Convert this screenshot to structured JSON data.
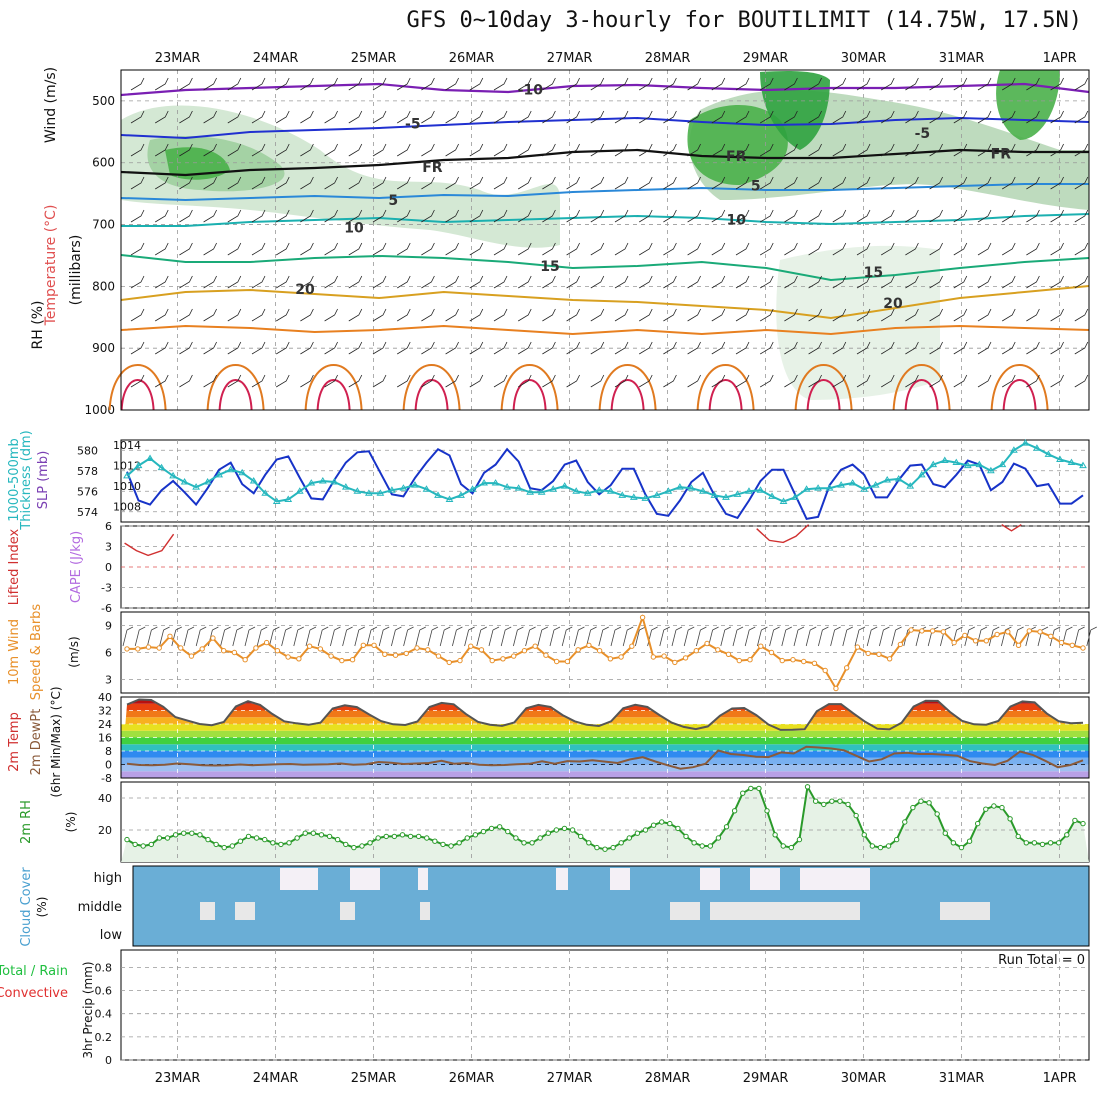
{
  "title": "GFS 0~10day 3-hourly for BOUTILIMIT (14.75W, 17.5N)",
  "colors": {
    "slp": "#1733c8",
    "thickness": "#26b7be",
    "lifted": "#d03030",
    "cape": "#b36be0",
    "wind": "#e8902a",
    "rh": "#2a9a2a",
    "cloud": "#6aaed6",
    "precip_total": "#1fbf3f",
    "precip_conv": "#e03030",
    "temp": "#555555",
    "dewpt": "#8a5a3a"
  },
  "chart_data": [
    {
      "type": "heatmap",
      "panel": "upper-air",
      "ylabel_parts": [
        "RH (%)",
        "Temperature (°C)",
        "Wind (m/s)",
        "(millibars)"
      ],
      "x_ticks": [
        "23MAR",
        "24MAR",
        "25MAR",
        "26MAR",
        "27MAR",
        "28MAR",
        "29MAR",
        "30MAR",
        "31MAR",
        "1APR"
      ],
      "y_ticks": [
        500,
        600,
        700,
        800,
        900,
        1000
      ],
      "ylim": [
        450,
        1000
      ],
      "isotherm_labels": [
        {
          "label": "-10",
          "day": 3.6,
          "p": 490
        },
        {
          "label": "-5",
          "day": 2.4,
          "p": 545
        },
        {
          "label": "-5",
          "day": 7.6,
          "p": 560
        },
        {
          "label": "FR",
          "day": 2.6,
          "p": 615
        },
        {
          "label": "FR",
          "day": 5.7,
          "p": 597
        },
        {
          "label": "FR",
          "day": 8.4,
          "p": 593
        },
        {
          "label": "5",
          "day": 2.2,
          "p": 668
        },
        {
          "label": "5",
          "day": 5.9,
          "p": 645
        },
        {
          "label": "10",
          "day": 1.8,
          "p": 713
        },
        {
          "label": "10",
          "day": 5.7,
          "p": 700
        },
        {
          "label": "15",
          "day": 3.8,
          "p": 775
        },
        {
          "label": "15",
          "day": 7.1,
          "p": 785
        },
        {
          "label": "20",
          "day": 1.3,
          "p": 812
        },
        {
          "label": "20",
          "day": 7.3,
          "p": 835
        }
      ]
    },
    {
      "type": "line",
      "panel": "slp-thickness",
      "ylabel_left": [
        "1000-500mb",
        "Thickness (dm)"
      ],
      "ylabel_right": "SLP (mb)",
      "y_ticks_thickness": [
        574,
        576,
        578,
        580
      ],
      "y_ticks_slp": [
        1008,
        1010,
        1012,
        1014
      ],
      "series": [
        {
          "name": "SLP (mb)",
          "values": [
            1011.4,
            1008.6,
            1008.2,
            1009.6,
            1010.5,
            1009.4,
            1008.2,
            1009.8,
            1011.6,
            1012.3,
            1010.2,
            1009.3,
            1011.1,
            1012.6,
            1012.9,
            1010.8,
            1008.8,
            1008.7,
            1010.6,
            1012.3,
            1013.3,
            1013.4,
            1011.3,
            1009.2,
            1009.0,
            1010.8,
            1012.3,
            1013.6,
            1013.0,
            1010.2,
            1009.3,
            1011.3,
            1012.1,
            1013.6,
            1012.4,
            1009.8,
            1009.6,
            1010.5,
            1012.1,
            1012.5,
            1010.4,
            1009.2,
            1010.1,
            1011.7,
            1011.7,
            1009.2,
            1007.3,
            1007.1,
            1008.6,
            1010.4,
            1011.3,
            1009.1,
            1007.3,
            1006.9,
            1008.6,
            1010.5,
            1011.6,
            1011.6,
            1009.2,
            1006.8,
            1007.0,
            1010.1,
            1011.6,
            1012.1,
            1011.1,
            1008.9,
            1008.9,
            1010.6,
            1012.0,
            1012.1,
            1010.2,
            1009.9,
            1011.1,
            1012.5,
            1012.1,
            1009.6,
            1010.4,
            1012.2,
            1011.7,
            1010.0,
            1010.2,
            1008.3,
            1008.3,
            1009.1
          ]
        },
        {
          "name": "1000-500mb Thickness (dm)",
          "values": [
            577.5,
            578.5,
            579.2,
            578.3,
            577.5,
            576.9,
            576.4,
            576.9,
            577.6,
            578.1,
            577.8,
            577.0,
            575.8,
            575.0,
            575.2,
            576.0,
            576.8,
            577.0,
            576.9,
            576.4,
            576.0,
            575.8,
            575.8,
            576.1,
            576.3,
            576.6,
            576.2,
            575.6,
            575.2,
            575.6,
            576.2,
            576.8,
            576.8,
            576.4,
            576.3,
            575.9,
            575.9,
            576.2,
            576.5,
            576.0,
            575.8,
            576.1,
            576.0,
            575.6,
            575.4,
            575.3,
            575.6,
            576.0,
            576.4,
            576.3,
            576.0,
            575.6,
            575.4,
            575.7,
            576.0,
            576.1,
            575.5,
            575.0,
            575.4,
            576.2,
            576.3,
            576.3,
            576.6,
            576.8,
            576.2,
            576.6,
            577.1,
            577.2,
            576.5,
            577.6,
            578.6,
            579.0,
            578.8,
            578.5,
            578.6,
            578.0,
            578.6,
            580.0,
            580.7,
            580.2,
            579.6,
            579.1,
            578.8,
            578.5
          ]
        }
      ]
    },
    {
      "type": "line",
      "panel": "lifted-cape",
      "ylabel_left": "Lifted Index",
      "ylabel_right": "CAPE (J/kg)",
      "y_ticks": [
        6,
        3,
        0,
        -3,
        -6
      ],
      "ylim": [
        6,
        -6
      ],
      "series": [
        {
          "name": "Lifted Index",
          "points": [
            [
              0.0,
              3.5
            ],
            [
              0.12,
              2.4
            ],
            [
              0.24,
              1.7
            ],
            [
              0.38,
              2.4
            ],
            [
              0.5,
              4.8
            ]
          ]
        },
        {
          "name": "Lifted Index",
          "points": [
            [
              6.45,
              5.6
            ],
            [
              6.58,
              3.9
            ],
            [
              6.72,
              3.6
            ],
            [
              6.85,
              4.5
            ],
            [
              6.98,
              6.2
            ]
          ]
        },
        {
          "name": "Lifted Index",
          "points": [
            [
              8.95,
              6.2
            ],
            [
              9.05,
              5.3
            ],
            [
              9.15,
              6.2
            ]
          ]
        }
      ]
    },
    {
      "type": "line",
      "panel": "wind-10m",
      "ylabel_left": "10m Wind",
      "ylabel_mid": "Speed & Barbs",
      "ylabel_unit": "(m/s)",
      "y_ticks": [
        3,
        6,
        9
      ],
      "ylim": [
        1.5,
        10.5
      ],
      "series": [
        {
          "name": "10m Wind Speed (m/s)",
          "values": [
            6.4,
            6.4,
            6.6,
            6.5,
            7.8,
            6.5,
            5.6,
            6.4,
            7.6,
            6.2,
            6.0,
            5.2,
            6.5,
            7.1,
            6.2,
            5.5,
            5.3,
            6.7,
            6.4,
            5.6,
            5.1,
            5.2,
            6.8,
            6.8,
            5.8,
            5.7,
            5.9,
            6.5,
            6.3,
            5.6,
            4.9,
            5.1,
            6.7,
            6.3,
            5.1,
            5.3,
            5.6,
            6.2,
            6.7,
            5.7,
            5.0,
            5.0,
            6.3,
            6.8,
            6.2,
            5.3,
            5.5,
            6.7,
            9.9,
            5.5,
            5.6,
            4.9,
            5.4,
            6.2,
            7.0,
            6.3,
            5.8,
            5.1,
            5.2,
            6.7,
            6.0,
            5.1,
            5.2,
            5.0,
            4.8,
            4.0,
            2.0,
            4.3,
            6.6,
            5.9,
            5.8,
            5.3,
            6.9,
            8.5,
            8.4,
            8.4,
            8.3,
            7.1,
            7.9,
            7.3,
            7.3,
            8.0,
            8.3,
            6.8,
            8.4,
            8.3,
            7.8,
            7.1,
            6.8,
            6.5
          ]
        }
      ]
    },
    {
      "type": "area",
      "panel": "temp-dewpt",
      "ylabel_left": "2m Temp",
      "ylabel_mid": "2m DewPt",
      "ylabel_right": "(6hr Min/Max) (°C)",
      "y_ticks": [
        -8,
        0,
        8,
        16,
        24,
        32,
        40
      ],
      "ylim": [
        -8,
        40
      ],
      "series": [
        {
          "name": "2m Temp (°C)",
          "values": [
            35.5,
            38.5,
            38.2,
            34.2,
            28.1,
            26.0,
            24.0,
            23.3,
            25.2,
            34.4,
            37.5,
            35.3,
            30.0,
            25.6,
            24.4,
            23.5,
            24.8,
            33.2,
            35.1,
            34.0,
            29.7,
            25.7,
            23.8,
            23.4,
            25.5,
            34.1,
            36.5,
            35.7,
            30.0,
            25.3,
            23.6,
            22.9,
            24.9,
            33.3,
            35.3,
            34.1,
            29.3,
            25.6,
            23.5,
            22.8,
            25.6,
            33.3,
            35.4,
            34.1,
            29.3,
            24.8,
            22.3,
            21.0,
            22.6,
            28.9,
            33.2,
            33.5,
            29.3,
            23.7,
            20.5,
            20.6,
            20.9,
            31.5,
            35.8,
            35.8,
            30.4,
            25.3,
            21.2,
            20.8,
            24.7,
            34.3,
            37.8,
            37.7,
            31.2,
            25.9,
            23.8,
            23.6,
            25.8,
            34.3,
            37.4,
            36.8,
            30.3,
            25.6,
            24.5,
            24.7
          ]
        },
        {
          "name": "2m DewPt (°C)",
          "values": [
            0.5,
            -0.3,
            -0.5,
            -0.1,
            0.6,
            0.2,
            -0.4,
            -0.6,
            -0.5,
            0.0,
            -0.4,
            -0.2,
            0.2,
            0.3,
            -0.1,
            0.0,
            0.2,
            0.6,
            -0.1,
            0.2,
            1.5,
            1.0,
            0.3,
            0.6,
            0.9,
            2.2,
            0.5,
            0.9,
            -0.2,
            -0.5,
            -0.3,
            0.1,
            0.4,
            1.9,
            0.5,
            2.0,
            1.8,
            2.5,
            1.7,
            0.9,
            3.0,
            4.3,
            1.8,
            -0.5,
            -2.5,
            -1.6,
            0.5,
            8.3,
            6.2,
            5.6,
            4.6,
            4.4,
            7.2,
            6.5,
            10.5,
            10.1,
            9.5,
            8.4,
            5.1,
            1.8,
            3.1,
            6.5,
            7.0,
            6.2,
            6.2,
            5.8,
            5.2,
            2.0,
            0.6,
            -0.3,
            2.2,
            7.7,
            5.7,
            2.2,
            -1.6,
            -0.3,
            2.5
          ]
        }
      ]
    },
    {
      "type": "area",
      "panel": "rh-2m",
      "ylabel_left": "2m RH",
      "ylabel_unit": "(%)",
      "y_ticks": [
        20,
        40
      ],
      "ylim": [
        0,
        50
      ],
      "series": [
        {
          "name": "2m RH (%)",
          "values": [
            14,
            11,
            10,
            11,
            15,
            15,
            17,
            18,
            18,
            17,
            14,
            11,
            9,
            10,
            13,
            16,
            15,
            14,
            12,
            11,
            12,
            15,
            18,
            18,
            17,
            16,
            14,
            11,
            9,
            10,
            12,
            15,
            16,
            16,
            17,
            16,
            16,
            15,
            13,
            11,
            10,
            12,
            15,
            17,
            19,
            21,
            22,
            19,
            15,
            12,
            12,
            15,
            18,
            20,
            21,
            20,
            16,
            12,
            9,
            8,
            9,
            12,
            15,
            18,
            20,
            23,
            25,
            24,
            21,
            16,
            12,
            10,
            10,
            15,
            22,
            32,
            43,
            46,
            46,
            32,
            17,
            10,
            9,
            14,
            47,
            38,
            36,
            38,
            38,
            36,
            29,
            17,
            10,
            9,
            10,
            14,
            25,
            34,
            38,
            37,
            30,
            18,
            12,
            9,
            13,
            24,
            33,
            35,
            34,
            27,
            16,
            12,
            12,
            11,
            12,
            12,
            17,
            26,
            24
          ]
        }
      ]
    },
    {
      "type": "table",
      "panel": "cloud-cover",
      "ylabel_left": "Cloud Cover",
      "ylabel_unit": "(%)",
      "y_ticks": [
        "high",
        "middle",
        "low"
      ]
    },
    {
      "type": "bar",
      "panel": "precip-3hr",
      "ylabel_left": "Total / Rain",
      "ylabel_left2": "Convective",
      "ylabel_mid": "3hr Precip (mm)",
      "y_ticks": [
        0,
        0.2,
        0.4,
        0.6,
        0.8
      ],
      "ylim": [
        0,
        0.95
      ],
      "run_total_label": "Run Total = 0",
      "x_ticks": [
        "23MAR",
        "24MAR",
        "25MAR",
        "26MAR",
        "27MAR",
        "28MAR",
        "29MAR",
        "30MAR",
        "31MAR",
        "1APR"
      ],
      "values": []
    }
  ]
}
